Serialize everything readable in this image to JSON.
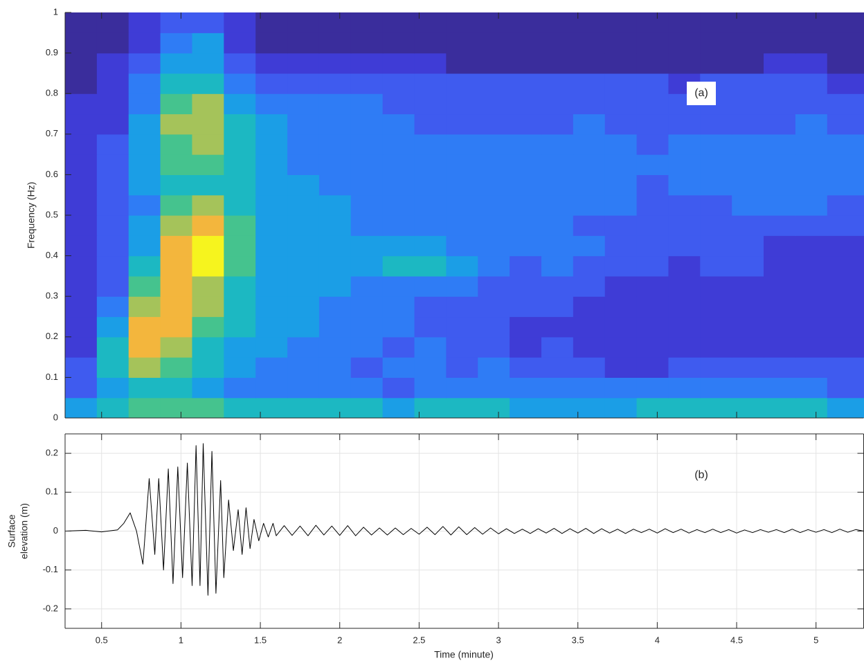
{
  "chart_data": [
    {
      "type": "heatmap",
      "ylabel": "Frequency (Hz)",
      "annotation": "(a)",
      "xlim": [
        0.27,
        5.3
      ],
      "xticks": [
        0.5,
        1,
        1.5,
        2,
        2.5,
        3,
        3.5,
        4,
        4.5,
        5
      ],
      "ylim": [
        0,
        1
      ],
      "yticks": [
        0,
        0.1,
        0.2,
        0.3,
        0.4,
        0.5,
        0.6,
        0.7,
        0.8,
        0.9,
        1
      ],
      "zlim": [
        0,
        9
      ],
      "colormap": [
        "#3a2d9c",
        "#3f3cd6",
        "#3f5bef",
        "#2f7cf5",
        "#1b9ee6",
        "#1cb8c2",
        "#45c38e",
        "#a5c35a",
        "#f3b63d",
        "#f6f41e"
      ],
      "x": [
        0.37,
        0.57,
        0.77,
        0.97,
        1.17,
        1.37,
        1.57,
        1.77,
        1.97,
        2.17,
        2.37,
        2.57,
        2.77,
        2.97,
        3.17,
        3.37,
        3.57,
        3.77,
        3.97,
        4.17,
        4.37,
        4.57,
        4.77,
        4.97,
        5.17
      ],
      "y": [
        0.025,
        0.075,
        0.125,
        0.175,
        0.225,
        0.275,
        0.325,
        0.375,
        0.425,
        0.475,
        0.525,
        0.575,
        0.625,
        0.675,
        0.725,
        0.775,
        0.825,
        0.875,
        0.925,
        0.975
      ],
      "z": [
        [
          4,
          5,
          6,
          6,
          6,
          5,
          5,
          5,
          5,
          5,
          4,
          5,
          5,
          5,
          4,
          4,
          4,
          4,
          5,
          5,
          5,
          5,
          5,
          5,
          4
        ],
        [
          2,
          4,
          5,
          5,
          4,
          3,
          3,
          3,
          3,
          3,
          2,
          3,
          3,
          3,
          3,
          3,
          3,
          3,
          3,
          3,
          3,
          3,
          3,
          3,
          2
        ],
        [
          2,
          5,
          7,
          6,
          5,
          4,
          3,
          3,
          3,
          2,
          3,
          3,
          2,
          3,
          2,
          2,
          2,
          1,
          1,
          2,
          2,
          2,
          2,
          2,
          2
        ],
        [
          1,
          5,
          8,
          7,
          5,
          4,
          4,
          3,
          3,
          3,
          2,
          3,
          2,
          2,
          1,
          2,
          1,
          1,
          1,
          1,
          1,
          1,
          1,
          1,
          1
        ],
        [
          1,
          4,
          8,
          8,
          6,
          5,
          4,
          4,
          3,
          3,
          3,
          2,
          2,
          2,
          1,
          1,
          1,
          1,
          1,
          1,
          1,
          1,
          1,
          1,
          1
        ],
        [
          1,
          3,
          7,
          8,
          7,
          5,
          4,
          4,
          3,
          3,
          3,
          2,
          2,
          2,
          2,
          2,
          1,
          1,
          1,
          1,
          1,
          1,
          1,
          1,
          1
        ],
        [
          1,
          2,
          6,
          8,
          7,
          5,
          4,
          4,
          4,
          3,
          3,
          3,
          3,
          2,
          2,
          2,
          2,
          1,
          1,
          1,
          1,
          1,
          1,
          1,
          1
        ],
        [
          1,
          2,
          5,
          8,
          9,
          6,
          4,
          4,
          4,
          4,
          5,
          5,
          4,
          3,
          2,
          3,
          2,
          2,
          2,
          1,
          2,
          2,
          1,
          1,
          1
        ],
        [
          1,
          2,
          4,
          8,
          9,
          6,
          4,
          4,
          4,
          4,
          4,
          4,
          3,
          3,
          3,
          3,
          3,
          2,
          2,
          2,
          2,
          2,
          1,
          1,
          1
        ],
        [
          1,
          2,
          4,
          7,
          8,
          6,
          4,
          4,
          4,
          3,
          3,
          3,
          3,
          3,
          3,
          3,
          2,
          2,
          2,
          2,
          2,
          2,
          2,
          2,
          2
        ],
        [
          1,
          2,
          3,
          6,
          7,
          5,
          4,
          4,
          4,
          3,
          3,
          3,
          3,
          3,
          3,
          3,
          3,
          3,
          2,
          2,
          2,
          3,
          3,
          3,
          2
        ],
        [
          1,
          2,
          4,
          5,
          5,
          5,
          4,
          4,
          3,
          3,
          3,
          3,
          3,
          3,
          3,
          3,
          3,
          3,
          2,
          3,
          3,
          3,
          3,
          3,
          3
        ],
        [
          1,
          2,
          4,
          6,
          6,
          5,
          4,
          3,
          3,
          3,
          3,
          3,
          3,
          3,
          3,
          3,
          3,
          3,
          3,
          3,
          3,
          3,
          3,
          3,
          3
        ],
        [
          1,
          2,
          4,
          6,
          7,
          5,
          4,
          3,
          3,
          3,
          3,
          3,
          3,
          3,
          3,
          3,
          3,
          3,
          2,
          3,
          3,
          3,
          3,
          3,
          3
        ],
        [
          1,
          1,
          4,
          7,
          7,
          5,
          4,
          3,
          3,
          3,
          3,
          2,
          2,
          2,
          2,
          2,
          3,
          2,
          2,
          2,
          2,
          2,
          2,
          3,
          2
        ],
        [
          1,
          1,
          3,
          6,
          7,
          4,
          3,
          3,
          3,
          3,
          2,
          2,
          2,
          2,
          2,
          2,
          2,
          2,
          2,
          2,
          2,
          2,
          2,
          2,
          2
        ],
        [
          0,
          1,
          3,
          5,
          5,
          3,
          2,
          2,
          2,
          2,
          2,
          2,
          2,
          2,
          2,
          2,
          2,
          2,
          2,
          1,
          2,
          2,
          2,
          2,
          1
        ],
        [
          0,
          1,
          2,
          4,
          4,
          2,
          1,
          1,
          1,
          1,
          1,
          1,
          0,
          0,
          0,
          0,
          0,
          0,
          0,
          0,
          0,
          0,
          1,
          1,
          0
        ],
        [
          0,
          0,
          1,
          3,
          4,
          1,
          0,
          0,
          0,
          0,
          0,
          0,
          0,
          0,
          0,
          0,
          0,
          0,
          0,
          0,
          0,
          0,
          0,
          0,
          0
        ],
        [
          0,
          0,
          1,
          2,
          2,
          1,
          0,
          0,
          0,
          0,
          0,
          0,
          0,
          0,
          0,
          0,
          0,
          0,
          0,
          0,
          0,
          0,
          0,
          0,
          0
        ]
      ]
    },
    {
      "type": "line",
      "ylabel": [
        "Surface",
        "elevation (m)"
      ],
      "xlabel": "Time (minute)",
      "annotation": "(b)",
      "color": "#000000",
      "grid": true,
      "xlim": [
        0.27,
        5.3
      ],
      "xticks": [
        0.5,
        1,
        1.5,
        2,
        2.5,
        3,
        3.5,
        4,
        4.5,
        5
      ],
      "ylim": [
        -0.25,
        0.25
      ],
      "yticks": [
        -0.2,
        -0.1,
        0,
        0.1,
        0.2
      ],
      "x": [
        0.27,
        0.4,
        0.5,
        0.6,
        0.64,
        0.68,
        0.72,
        0.76,
        0.8,
        0.835,
        0.86,
        0.89,
        0.92,
        0.95,
        0.98,
        1.01,
        1.04,
        1.07,
        1.095,
        1.12,
        1.14,
        1.17,
        1.195,
        1.22,
        1.25,
        1.27,
        1.3,
        1.33,
        1.36,
        1.385,
        1.41,
        1.435,
        1.46,
        1.49,
        1.52,
        1.55,
        1.58,
        1.6,
        1.65,
        1.7,
        1.75,
        1.8,
        1.85,
        1.9,
        1.95,
        2,
        2.05,
        2.1,
        2.15,
        2.2,
        2.25,
        2.3,
        2.35,
        2.4,
        2.45,
        2.5,
        2.55,
        2.6,
        2.65,
        2.7,
        2.75,
        2.8,
        2.85,
        2.9,
        2.95,
        3,
        3.05,
        3.1,
        3.15,
        3.2,
        3.25,
        3.3,
        3.35,
        3.4,
        3.45,
        3.5,
        3.55,
        3.6,
        3.65,
        3.7,
        3.75,
        3.8,
        3.85,
        3.9,
        3.95,
        4,
        4.05,
        4.1,
        4.15,
        4.2,
        4.25,
        4.3,
        4.35,
        4.4,
        4.45,
        4.5,
        4.55,
        4.6,
        4.65,
        4.7,
        4.75,
        4.8,
        4.85,
        4.9,
        4.95,
        5,
        5.05,
        5.1,
        5.15,
        5.2,
        5.25,
        5.3
      ],
      "values": [
        0,
        0.002,
        -0.002,
        0.003,
        0.02,
        0.047,
        0.0,
        -0.085,
        0.135,
        -0.06,
        0.135,
        -0.1,
        0.16,
        -0.135,
        0.165,
        -0.12,
        0.175,
        -0.14,
        0.22,
        -0.14,
        0.225,
        -0.165,
        0.205,
        -0.16,
        0.13,
        -0.12,
        0.08,
        -0.05,
        0.055,
        -0.06,
        0.06,
        -0.045,
        0.03,
        -0.025,
        0.02,
        -0.015,
        0.02,
        -0.012,
        0.014,
        -0.011,
        0.013,
        -0.012,
        0.015,
        -0.01,
        0.013,
        -0.011,
        0.014,
        -0.012,
        0.01,
        -0.01,
        0.008,
        -0.01,
        0.008,
        -0.009,
        0.007,
        -0.008,
        0.01,
        -0.009,
        0.012,
        -0.01,
        0.011,
        -0.009,
        0.009,
        -0.008,
        0.008,
        -0.007,
        0.006,
        -0.006,
        0.005,
        -0.006,
        0.006,
        -0.005,
        0.007,
        -0.006,
        0.006,
        -0.005,
        0.007,
        -0.006,
        0.006,
        -0.005,
        0.005,
        -0.006,
        0.005,
        -0.004,
        0.005,
        -0.005,
        0.006,
        -0.004,
        0.005,
        -0.005,
        0.004,
        -0.004,
        0.005,
        -0.004,
        0.004,
        -0.005,
        0.003,
        -0.004,
        0.004,
        -0.003,
        0.004,
        -0.004,
        0.005,
        -0.004,
        0.004,
        -0.003,
        0.004,
        -0.004,
        0.005,
        -0.003,
        0.004,
        0
      ]
    }
  ]
}
